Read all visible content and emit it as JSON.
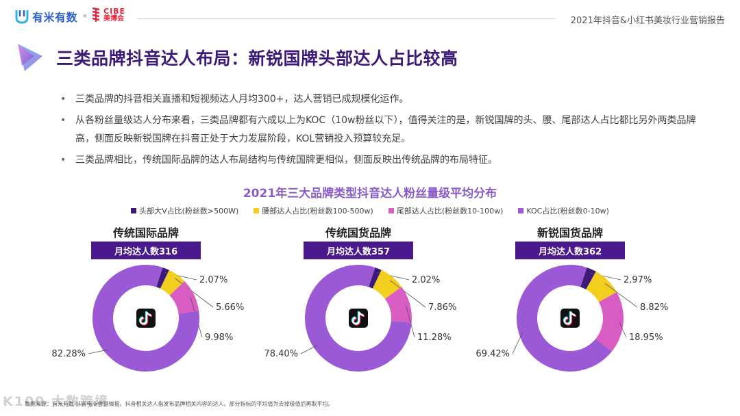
{
  "header": {
    "logo_youmi_text": "有米有数",
    "logo_separator": "×",
    "logo_cibe_en": "CIBE",
    "logo_cibe_cn": "美博会",
    "report_title": "2021年抖音&小红书美妆行业营销报告"
  },
  "page_title": "三类品牌抖音达人布局：新锐国牌头部达人占比较高",
  "bullets": [
    "三类品牌的抖音相关直播和短视频达人月均300+，达人营销已成规模化运作。",
    "从各粉丝量级达人分布来看，三类品牌都有六成以上为KOC（10w粉丝以下），值得关注的是，新锐国牌的头、腰、尾部达人占比都比另外两类品牌高，侧面反映新锐国牌在抖音正处于大力发展阶段，KOL营销投入预算较充足。",
    "三类品牌相比，传统国际品牌的达人布局结构与传统国牌更相似，侧面反映出传统品牌的布局特征。"
  ],
  "footer_note": "数据来源：有米有数·抖音电商营销情报。抖音相关达人指发布品牌相关内容的达人。部分指标的平均值为去掉极值后再取平均。",
  "watermark": "K100 大数跨境",
  "colors": {
    "head": "#3d1a7a",
    "waist": "#f2cf1e",
    "tail": "#d95cc3",
    "koc": "#9b59d6"
  },
  "center_icon": "tiktok-icon",
  "chart_data": {
    "type": "pie",
    "title": "2021年三大品牌类型抖音达人粉丝量级平均分布",
    "legend_position": "top",
    "series": [
      {
        "name": "头部大V占比(粉丝数>500W)",
        "color": "#3d1a7a"
      },
      {
        "name": "腰部达人占比(粉丝数100-500w)",
        "color": "#f2cf1e"
      },
      {
        "name": "尾部达人占比(粉丝数10-100w)",
        "color": "#d95cc3"
      },
      {
        "name": "KOC占比(粉丝数0-10w)",
        "color": "#9b59d6"
      }
    ],
    "charts": [
      {
        "name": "传统国际品牌",
        "count_label": "月均达人数316",
        "values": [
          2.07,
          5.66,
          9.98,
          82.28
        ],
        "labels": [
          "2.07%",
          "5.66%",
          "9.98%",
          "82.28%"
        ]
      },
      {
        "name": "传统国货品牌",
        "count_label": "月均达人数357",
        "values": [
          2.02,
          7.86,
          11.28,
          78.4
        ],
        "labels": [
          "2.02%",
          "7.86%",
          "11.28%",
          "78.40%"
        ]
      },
      {
        "name": "新锐国货品牌",
        "count_label": "月均达人数362",
        "values": [
          2.97,
          8.82,
          18.95,
          69.42
        ],
        "labels": [
          "2.97%",
          "8.82%",
          "18.95%",
          "69.42%"
        ]
      }
    ]
  }
}
